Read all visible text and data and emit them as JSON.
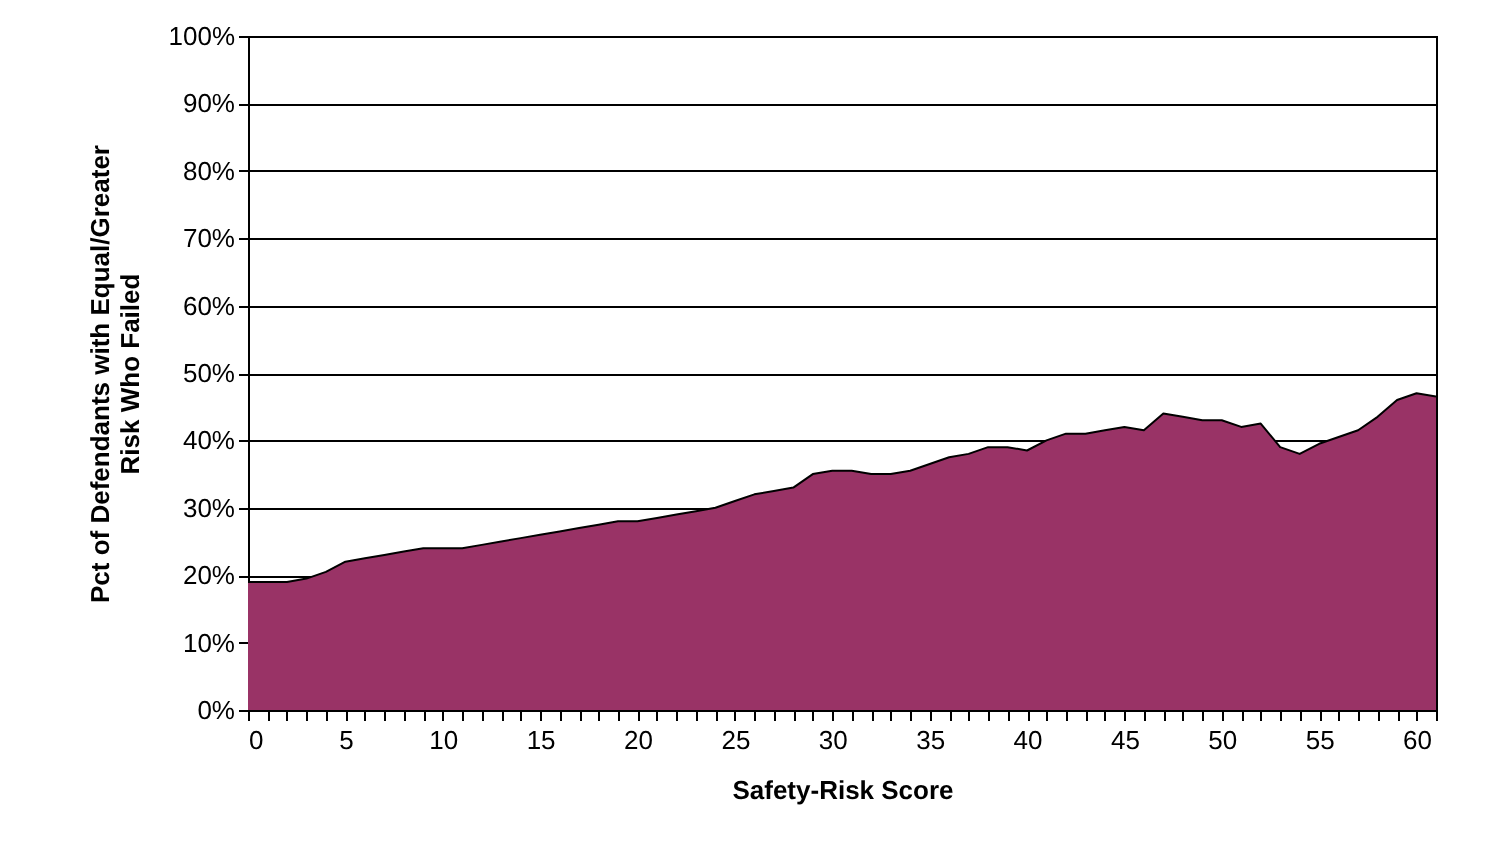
{
  "chart_data": {
    "type": "area",
    "xlabel": "Safety-Risk Score",
    "ylabel": "Pct of Defendants with Equal/Greater\nRisk Who Failed",
    "x": [
      0,
      1,
      2,
      3,
      4,
      5,
      6,
      7,
      8,
      9,
      10,
      11,
      12,
      13,
      14,
      15,
      16,
      17,
      18,
      19,
      20,
      21,
      22,
      23,
      24,
      25,
      26,
      27,
      28,
      29,
      30,
      31,
      32,
      33,
      34,
      35,
      36,
      37,
      38,
      39,
      40,
      41,
      42,
      43,
      44,
      45,
      46,
      47,
      48,
      49,
      50,
      51,
      52,
      53,
      54,
      55,
      56,
      57,
      58,
      59,
      60,
      61
    ],
    "series": [
      {
        "color": "#993366",
        "values": [
          19,
          19,
          19,
          19.5,
          20.5,
          22,
          22.5,
          23,
          23.5,
          24,
          24,
          24,
          24.5,
          25,
          25.5,
          26,
          26.5,
          27,
          27.5,
          28,
          28,
          28.5,
          29,
          29.5,
          30,
          31,
          32,
          32.5,
          33,
          35,
          35.5,
          35.5,
          35,
          35,
          35.5,
          36.5,
          37.5,
          38,
          39,
          39,
          38.5,
          40,
          41,
          41,
          41.5,
          42,
          41.5,
          44,
          43.5,
          43,
          43,
          42,
          42.5,
          39,
          38,
          39.5,
          40.5,
          41.5,
          43.5,
          46,
          47,
          46.5
        ]
      }
    ],
    "xlim": [
      0,
      61
    ],
    "xticks": [
      0,
      {
        "value": 1,
        "label": null
      },
      {
        "value": 2,
        "label": null
      },
      {
        "value": 3,
        "label": null
      },
      {
        "value": 4,
        "label": null
      },
      5,
      {
        "value": 6,
        "label": null
      },
      {
        "value": 7,
        "label": null
      },
      {
        "value": 8,
        "label": null
      },
      {
        "value": 9,
        "label": null
      },
      10,
      {
        "value": 11,
        "label": null
      },
      {
        "value": 12,
        "label": null
      },
      {
        "value": 13,
        "label": null
      },
      {
        "value": 14,
        "label": null
      },
      15,
      {
        "value": 16,
        "label": null
      },
      {
        "value": 17,
        "label": null
      },
      {
        "value": 18,
        "label": null
      },
      {
        "value": 19,
        "label": null
      },
      20,
      {
        "value": 21,
        "label": null
      },
      {
        "value": 22,
        "label": null
      },
      {
        "value": 23,
        "label": null
      },
      {
        "value": 24,
        "label": null
      },
      25,
      {
        "value": 26,
        "label": null
      },
      {
        "value": 27,
        "label": null
      },
      {
        "value": 28,
        "label": null
      },
      {
        "value": 29,
        "label": null
      },
      30,
      {
        "value": 31,
        "label": null
      },
      {
        "value": 32,
        "label": null
      },
      {
        "value": 33,
        "label": null
      },
      {
        "value": 34,
        "label": null
      },
      35,
      {
        "value": 36,
        "label": null
      },
      {
        "value": 37,
        "label": null
      },
      {
        "value": 38,
        "label": null
      },
      {
        "value": 39,
        "label": null
      },
      40,
      {
        "value": 41,
        "label": null
      },
      {
        "value": 42,
        "label": null
      },
      {
        "value": 43,
        "label": null
      },
      {
        "value": 44,
        "label": null
      },
      45,
      {
        "value": 46,
        "label": null
      },
      {
        "value": 47,
        "label": null
      },
      {
        "value": 48,
        "label": null
      },
      {
        "value": 49,
        "label": null
      },
      50,
      {
        "value": 51,
        "label": null
      },
      {
        "value": 52,
        "label": null
      },
      {
        "value": 53,
        "label": null
      },
      {
        "value": 54,
        "label": null
      },
      55,
      {
        "value": 56,
        "label": null
      },
      {
        "value": 57,
        "label": null
      },
      {
        "value": 58,
        "label": null
      },
      {
        "value": 59,
        "label": null
      },
      60,
      {
        "value": 61,
        "label": null
      }
    ],
    "ylim": [
      0,
      100
    ],
    "yticks": [
      {
        "value": 0,
        "label": "0%"
      },
      {
        "value": 10,
        "label": "10%"
      },
      {
        "value": 20,
        "label": "20%"
      },
      {
        "value": 30,
        "label": "30%"
      },
      {
        "value": 40,
        "label": "40%"
      },
      {
        "value": 50,
        "label": "50%"
      },
      {
        "value": 60,
        "label": "60%"
      },
      {
        "value": 70,
        "label": "70%"
      },
      {
        "value": 80,
        "label": "80%"
      },
      {
        "value": 90,
        "label": "90%"
      },
      {
        "value": 100,
        "label": "100%"
      }
    ],
    "grid": "y"
  }
}
